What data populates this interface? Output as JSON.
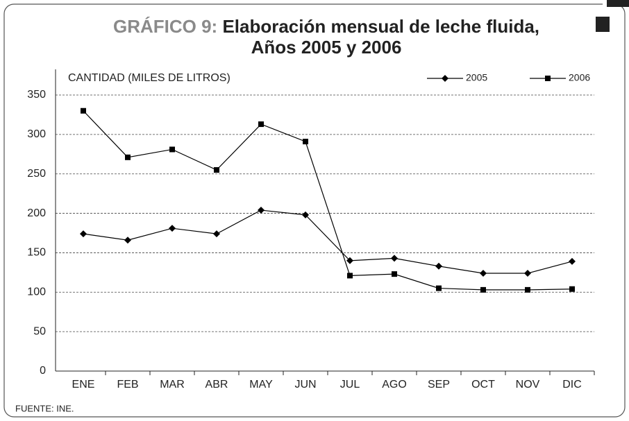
{
  "chart_data": {
    "type": "line",
    "title_prefix": "GRÁFICO 9:",
    "title_lines": [
      "Elaboración mensual de leche fluida,",
      "Años 2005 y 2006"
    ],
    "y_label": "CANTIDAD (MILES DE LITROS)",
    "source": "FUENTE: INE.",
    "categories": [
      "ENE",
      "FEB",
      "MAR",
      "ABR",
      "MAY",
      "JUN",
      "JUL",
      "AGO",
      "SEP",
      "OCT",
      "NOV",
      "DIC"
    ],
    "series": [
      {
        "name": "2005",
        "color": "#000000",
        "marker": "diamond",
        "values": [
          174,
          166,
          181,
          174,
          204,
          198,
          140,
          143,
          133,
          124,
          124,
          139
        ]
      },
      {
        "name": "2006",
        "color": "#000000",
        "marker": "square",
        "values": [
          330,
          271,
          281,
          255,
          313,
          291,
          121,
          123,
          105,
          103,
          103,
          104
        ]
      }
    ],
    "ylim": [
      0,
      350
    ],
    "yticks": [
      0,
      50,
      100,
      150,
      200,
      250,
      300,
      350
    ],
    "grid": true,
    "legend": "top-right"
  }
}
